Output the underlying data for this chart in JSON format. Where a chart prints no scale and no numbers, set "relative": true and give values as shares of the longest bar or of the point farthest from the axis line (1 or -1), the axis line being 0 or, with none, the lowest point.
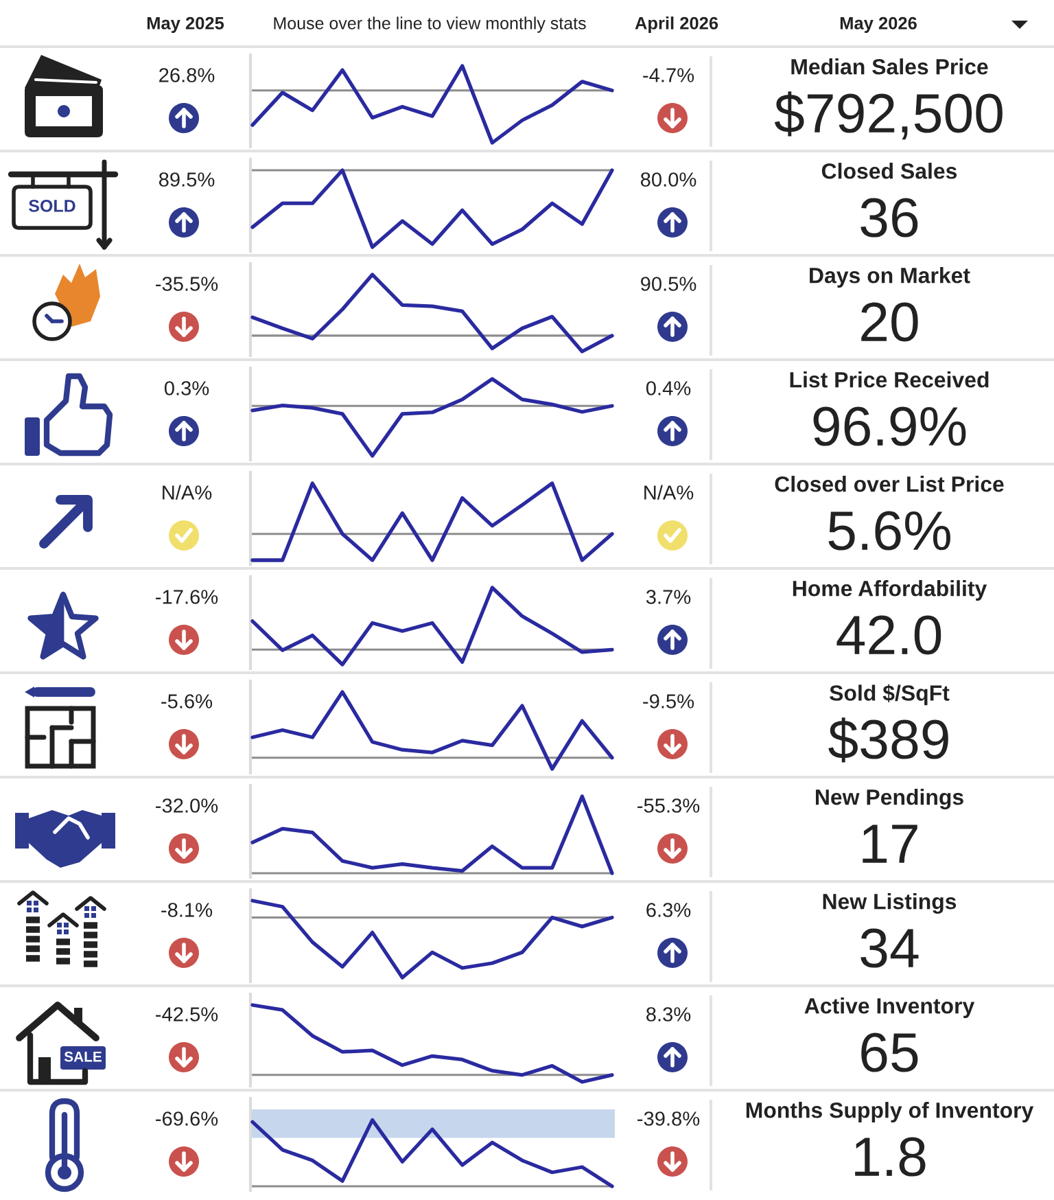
{
  "chart_data": [
    {
      "type": "other",
      "annotations": [
        "May 2025",
        "Mouse over the line to view monthly stats",
        "April 2026",
        "May 2026"
      ]
    },
    {
      "type": "line",
      "annotations": [
        "26.8%",
        "-4.7%",
        "Median Sales Price",
        "$792,500"
      ],
      "relative": true,
      "categories": [
        null,
        null,
        null,
        null,
        null,
        null,
        null,
        null,
        null,
        null,
        null,
        null,
        null
      ],
      "values": [
        -0.66,
        -0.04,
        -0.38,
        0.39,
        -0.52,
        -0.31,
        -0.49,
        0.47,
        -1,
        -0.57,
        -0.28,
        0.17,
        0
      ],
      "color": "#2a2aa0"
    },
    {
      "type": "line",
      "annotations": [
        "89.5%",
        "80.0%",
        "Closed Sales",
        "36",
        "SOLD"
      ],
      "relative": true,
      "categories": [
        null,
        null,
        null,
        null,
        null,
        null,
        null,
        null,
        null,
        null,
        null,
        null,
        null
      ],
      "values": [
        -0.74,
        -0.43,
        -0.43,
        0,
        -1,
        -0.66,
        -0.96,
        -0.52,
        -0.96,
        -0.77,
        -0.43,
        -0.7,
        0
      ],
      "color": "#2a2aa0"
    },
    {
      "type": "line",
      "annotations": [
        "-35.5%",
        "90.5%",
        "Days on Market",
        "20"
      ],
      "relative": true,
      "categories": [
        null,
        null,
        null,
        null,
        null,
        null,
        null,
        null,
        null,
        null,
        null,
        null,
        null
      ],
      "values": [
        0.3,
        0.12,
        -0.05,
        0.43,
        1,
        0.5,
        0.48,
        0.4,
        -0.21,
        0.12,
        0.31,
        -0.26,
        0
      ],
      "color": "#2a2aa0"
    },
    {
      "type": "line",
      "annotations": [
        "0.3%",
        "0.4%",
        "List Price Received",
        "96.9%"
      ],
      "relative": true,
      "categories": [
        null,
        null,
        null,
        null,
        null,
        null,
        null,
        null,
        null,
        null,
        null,
        null,
        null
      ],
      "values": [
        -0.09,
        0.01,
        -0.04,
        -0.16,
        -1,
        -0.16,
        -0.13,
        0.13,
        0.54,
        0.13,
        0.03,
        -0.12,
        0
      ],
      "color": "#2a2aa0"
    },
    {
      "type": "line",
      "annotations": [
        "N/A%",
        "N/A%",
        "Closed over List Price",
        "5.6%"
      ],
      "relative": true,
      "categories": [
        null,
        null,
        null,
        null,
        null,
        null,
        null,
        null,
        null,
        null,
        null,
        null,
        null
      ],
      "values": [
        -0.52,
        -0.52,
        1,
        0,
        -0.52,
        0.41,
        -0.52,
        0.71,
        0.16,
        0.57,
        1,
        -0.52,
        0
      ],
      "color": "#2a2aa0"
    },
    {
      "type": "line",
      "annotations": [
        "-17.6%",
        "3.7%",
        "Home Affordability",
        "42.0"
      ],
      "relative": true,
      "categories": [
        null,
        null,
        null,
        null,
        null,
        null,
        null,
        null,
        null,
        null,
        null,
        null,
        null
      ],
      "values": [
        0.46,
        -0.01,
        0.23,
        -0.24,
        0.43,
        0.3,
        0.43,
        -0.2,
        1,
        0.54,
        0.26,
        -0.04,
        0
      ],
      "color": "#2a2aa0"
    },
    {
      "type": "line",
      "annotations": [
        "-5.6%",
        "-9.5%",
        "Sold $/SqFt",
        "$389"
      ],
      "relative": true,
      "categories": [
        null,
        null,
        null,
        null,
        null,
        null,
        null,
        null,
        null,
        null,
        null,
        null,
        null
      ],
      "values": [
        0.31,
        0.42,
        0.31,
        1,
        0.24,
        0.12,
        0.08,
        0.26,
        0.19,
        0.79,
        -0.17,
        0.56,
        0
      ],
      "color": "#2a2aa0"
    },
    {
      "type": "line",
      "annotations": [
        "-32.0%",
        "-55.3%",
        "New Pendings",
        "17"
      ],
      "relative": true,
      "categories": [
        null,
        null,
        null,
        null,
        null,
        null,
        null,
        null,
        null,
        null,
        null,
        null,
        null
      ],
      "values": [
        0.4,
        0.58,
        0.53,
        0.16,
        0.07,
        0.12,
        0.07,
        0.03,
        0.35,
        0.07,
        0.07,
        1,
        0
      ],
      "color": "#2a2aa0"
    },
    {
      "type": "line",
      "annotations": [
        "-8.1%",
        "6.3%",
        "New Listings",
        "34"
      ],
      "relative": true,
      "categories": [
        null,
        null,
        null,
        null,
        null,
        null,
        null,
        null,
        null,
        null,
        null,
        null,
        null
      ],
      "values": [
        0.28,
        0.18,
        -0.41,
        -0.82,
        -0.25,
        -1,
        -0.58,
        -0.84,
        -0.76,
        -0.58,
        0,
        -0.15,
        0
      ],
      "color": "#2a2aa0"
    },
    {
      "type": "line",
      "annotations": [
        "-42.5%",
        "8.3%",
        "Active Inventory",
        "65",
        "SALE"
      ],
      "relative": true,
      "categories": [
        null,
        null,
        null,
        null,
        null,
        null,
        null,
        null,
        null,
        null,
        null,
        null,
        null
      ],
      "values": [
        1,
        0.93,
        0.56,
        0.33,
        0.35,
        0.14,
        0.27,
        0.22,
        0.06,
        0,
        0.13,
        -0.1,
        0
      ],
      "color": "#2a2aa0"
    },
    {
      "type": "line",
      "annotations": [
        "-69.6%",
        "-39.8%",
        "Months Supply of Inventory",
        "1.8"
      ],
      "relative": true,
      "categories": [
        null,
        null,
        null,
        null,
        null,
        null,
        null,
        null,
        null,
        null,
        null,
        null,
        null
      ],
      "values": [
        0.97,
        0.55,
        0.39,
        0.08,
        1,
        0.37,
        0.86,
        0.32,
        0.66,
        0.39,
        0.21,
        0.29,
        0
      ],
      "color": "#2a2aa0",
      "bands": [
        {
          "axis": "y",
          "from": 0.73,
          "to": 1.16,
          "color": "#c6d6ed"
        }
      ]
    }
  ]
}
